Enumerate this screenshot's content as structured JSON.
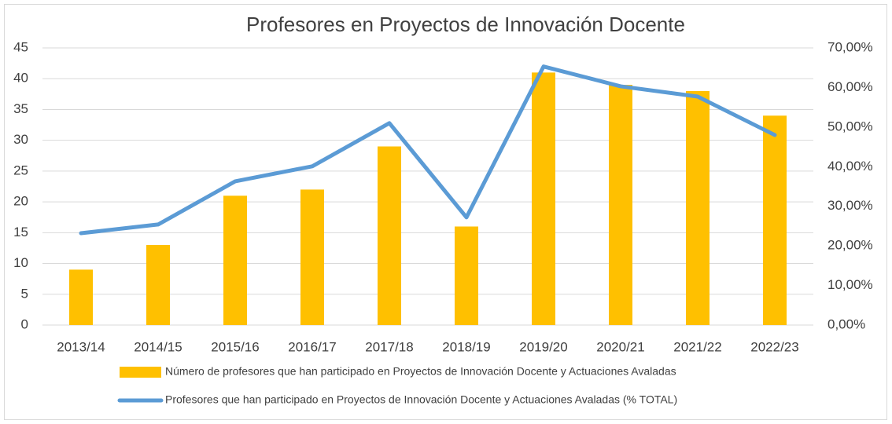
{
  "chart_data": {
    "type": "bar_line",
    "title": "Profesores en Proyectos de Innovación Docente",
    "categories": [
      "2013/14",
      "2014/15",
      "2015/16",
      "2016/17",
      "2017/18",
      "2018/19",
      "2019/20",
      "2020/21",
      "2021/22",
      "2022/23"
    ],
    "series": [
      {
        "name": "Número de profesores que han participado en Proyectos de Innovación Docente y Actuaciones Avaladas",
        "type": "bar",
        "color": "#ffc000",
        "values": [
          9,
          13,
          21,
          22,
          29,
          16,
          41,
          39,
          38,
          34
        ]
      },
      {
        "name": "Profesores que han participado en Proyectos de Innovación Docente y Actuaciones Avaladas (% TOTAL)",
        "type": "line",
        "axis": "y2",
        "color": "#5b9bd5",
        "values": [
          23.2,
          25.4,
          36.3,
          40.1,
          51.0,
          27.2,
          65.3,
          60.3,
          57.7,
          48.0
        ]
      }
    ],
    "ylim": [
      0,
      45
    ],
    "yticks": [
      0,
      5,
      10,
      15,
      20,
      25,
      30,
      35,
      40,
      45
    ],
    "y2lim": [
      0,
      70
    ],
    "y2ticks": [
      {
        "value": 0,
        "label": "0,00%"
      },
      {
        "value": 10,
        "label": "10,00%"
      },
      {
        "value": 20,
        "label": "20,00%"
      },
      {
        "value": 30,
        "label": "30,00%"
      },
      {
        "value": 40,
        "label": "40,00%"
      },
      {
        "value": 50,
        "label": "50,00%"
      },
      {
        "value": 60,
        "label": "60,00%"
      },
      {
        "value": 70,
        "label": "70,00%"
      }
    ],
    "grid": true,
    "legend": "bottom"
  }
}
